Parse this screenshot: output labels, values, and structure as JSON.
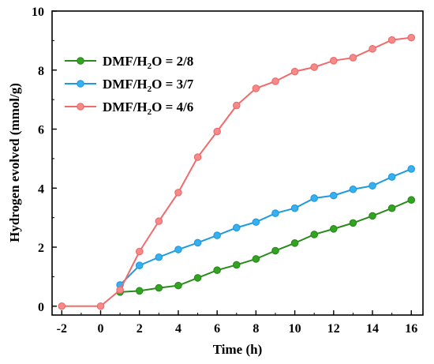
{
  "chart_data": {
    "type": "line",
    "title": "",
    "xlabel": "Time (h)",
    "ylabel": "Hydrogen evolved (mmol/g)",
    "xlim": [
      -2.5,
      16.6
    ],
    "ylim": [
      -0.3,
      10
    ],
    "x_ticks": [
      "-2",
      "0",
      "2",
      "4",
      "6",
      "8",
      "10",
      "12",
      "14",
      "16"
    ],
    "y_ticks": [
      "0",
      "2",
      "4",
      "6",
      "8",
      "10"
    ],
    "legend_position": "top-left",
    "grid": false,
    "series": [
      {
        "name": "DMF/H2O = 2/8",
        "label_parts": [
          "DMF/H",
          "2",
          "O = 2/8"
        ],
        "color": "#2a8a1c",
        "fill": "#33a422",
        "x": [
          1,
          2,
          3,
          4,
          5,
          6,
          7,
          8,
          9,
          10,
          11,
          12,
          13,
          14,
          15,
          16
        ],
        "y": [
          0.48,
          0.52,
          0.62,
          0.7,
          0.96,
          1.22,
          1.4,
          1.6,
          1.88,
          2.14,
          2.43,
          2.62,
          2.82,
          3.06,
          3.32,
          3.6
        ]
      },
      {
        "name": "DMF/H2O = 3/7",
        "label_parts": [
          "DMF/H",
          "2",
          "O = 3/7"
        ],
        "color": "#1e9be0",
        "fill": "#38b0f0",
        "x": [
          1,
          2,
          3,
          4,
          5,
          6,
          7,
          8,
          9,
          10,
          11,
          12,
          13,
          14,
          15,
          16
        ],
        "y": [
          0.72,
          1.38,
          1.66,
          1.92,
          2.15,
          2.4,
          2.66,
          2.85,
          3.15,
          3.32,
          3.66,
          3.75,
          3.96,
          4.08,
          4.38,
          4.65
        ]
      },
      {
        "name": "DMF/H2O = 4/6",
        "label_parts": [
          "DMF/H",
          "2",
          "O = 4/6"
        ],
        "color": "#f06b6b",
        "fill": "#f58a8a",
        "x": [
          -2,
          0,
          1,
          2,
          3,
          4,
          5,
          6,
          7,
          8,
          9,
          10,
          11,
          12,
          13,
          14,
          15,
          16
        ],
        "y": [
          0,
          0,
          0.55,
          1.85,
          2.88,
          3.85,
          5.05,
          5.92,
          6.8,
          7.38,
          7.62,
          7.95,
          8.1,
          8.32,
          8.42,
          8.72,
          9.02,
          9.1
        ]
      }
    ]
  }
}
